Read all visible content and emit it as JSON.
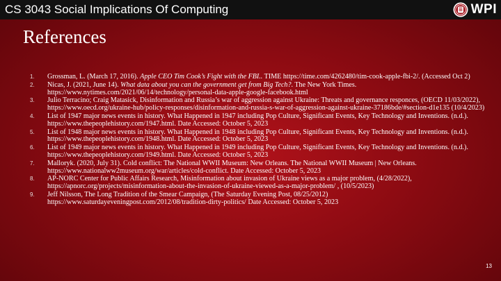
{
  "header": {
    "course_title": "CS 3043 Social Implications Of Computing",
    "logo_text": "WPI",
    "logo_icon": "wpi-seal-icon",
    "bar_color": "#111111"
  },
  "slide": {
    "title": "References",
    "page_number": "13",
    "background_color": "#9c0e15"
  },
  "references": [
    {
      "number": "1.",
      "before": "Grossman, L. (March 17, 2016). ",
      "italic": "Apple CEO Tim Cook’s Fight with the FBI..",
      "after": " TIME https://time.com/4262480/tim-cook-apple-fbi-2/.  (Accessed Oct 2)"
    },
    {
      "number": "2.",
      "before": "Nicas, J. (2021, June 14). ",
      "italic": "What data about you can the government get from Big Tech?",
      "after": ". The New York Times. https://www.nytimes.com/2021/06/14/technology/personal-data-apple-google-facebook.html"
    },
    {
      "number": "3.",
      "before": "Julio Terracino; Craig Matasick, Disinformation and Russia’s war of aggression against Ukraine: Threats and governance responces, (OECD 11/03/2022), https://www.oecd.org/ukraine-hub/policy-responses/disinformation-and-russia-s-war-of-aggression-against-ukraine-37186bde/#section-d1e135   (10/4/2023)",
      "italic": "",
      "after": ""
    },
    {
      "number": "4.",
      "before": "List of 1947 major news events in history. What Happened in 1947 including Pop Culture, Significant Events, Key Technology and Inventions. (n.d.). https://www.thepeoplehistory.com/1947.html. Date Accessed: October 5, 2023",
      "italic": "",
      "after": ""
    },
    {
      "number": "5.",
      "before": "List of 1948 major news events in history. What Happened in 1948 including Pop Culture, Significant Events, Key Technology and Inventions. (n.d.). https://www.thepeoplehistory.com/1948.html. Date Accessed: October 5,  2023",
      "italic": "",
      "after": ""
    },
    {
      "number": "6.",
      "before": "List of 1949 major news events in history. What Happened in 1949 including Pop Culture, Significant Events, Key Technology and Inventions. (n.d.). https://www.thepeoplehistory.com/1949.html. Date Accessed: October 5,  2023",
      "italic": "",
      "after": ""
    },
    {
      "number": "7.",
      "before": "Malloryk. (2020, July 31). Cold conflict: The National WWII Museum: New Orleans. The National WWII Museum | New Orleans. https://www.nationalww2museum.org/war/articles/cold-conflict. Date Accessed: October 5, 2023",
      "italic": "",
      "after": ""
    },
    {
      "number": "8.",
      "before": "AP-NORC Center for Public Affairs Research, Misinformation about invasion of Ukraine views as a major problem, (4/28/2022), https://apnorc.org/projects/misinformation-about-the-invasion-of-ukraine-viewed-as-a-major-problem/ , (10/5/2023)",
      "italic": "",
      "after": ""
    },
    {
      "number": "9.",
      "before": "Jeff Nilsson, The Long Tradition of the Smear Campaign, (The Saturday Evening Post, 08/25/2012) https://www.saturdayeveningpost.com/2012/08/tradition-dirty-politics/ Date Accessed: October 5, 2023",
      "italic": "",
      "after": ""
    }
  ]
}
